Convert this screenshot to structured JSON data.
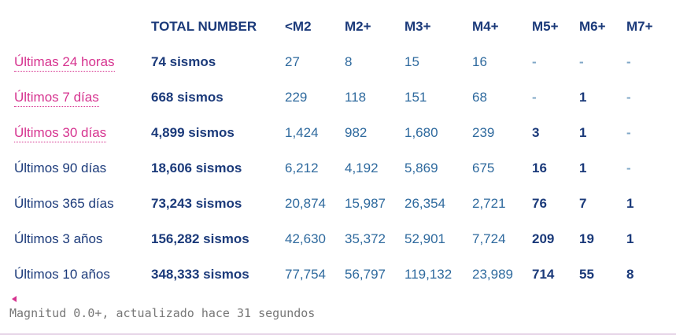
{
  "table": {
    "headers": {
      "period": "",
      "total": "TOTAL NUMBER",
      "m1": "<M2",
      "m2": "M2+",
      "m3": "M3+",
      "m4": "M4+",
      "m5": "M5+",
      "m6": "M6+",
      "m7": "M7+"
    },
    "rows": [
      {
        "period": "Últimas 24 horas",
        "link": true,
        "total": "74 sismos",
        "m1": "27",
        "m2": "8",
        "m3": "15",
        "m4": "16",
        "m5": "-",
        "m6": "-",
        "m7": "-"
      },
      {
        "period": "Últimos 7 días",
        "link": true,
        "total": "668 sismos",
        "m1": "229",
        "m2": "118",
        "m3": "151",
        "m4": "68",
        "m5": "-",
        "m6": "1",
        "m7": "-"
      },
      {
        "period": "Últimos 30 días",
        "link": true,
        "total": "4,899 sismos",
        "m1": "1,424",
        "m2": "982",
        "m3": "1,680",
        "m4": "239",
        "m5": "3",
        "m6": "1",
        "m7": "-"
      },
      {
        "period": "Últimos 90 días",
        "link": false,
        "total": "18,606 sismos",
        "m1": "6,212",
        "m2": "4,192",
        "m3": "5,869",
        "m4": "675",
        "m5": "16",
        "m6": "1",
        "m7": "-"
      },
      {
        "period": "Últimos 365 días",
        "link": false,
        "total": "73,243 sismos",
        "m1": "20,874",
        "m2": "15,987",
        "m3": "26,354",
        "m4": "2,721",
        "m5": "76",
        "m6": "7",
        "m7": "1"
      },
      {
        "period": "Últimos 3 años",
        "link": false,
        "total": "156,282 sismos",
        "m1": "42,630",
        "m2": "35,372",
        "m3": "52,901",
        "m4": "7,724",
        "m5": "209",
        "m6": "19",
        "m7": "1"
      },
      {
        "period": "Últimos 10 años",
        "link": false,
        "total": "348,333 sismos",
        "m1": "77,754",
        "m2": "56,797",
        "m3": "119,132",
        "m4": "23,989",
        "m5": "714",
        "m6": "55",
        "m7": "8"
      }
    ]
  },
  "footer": {
    "note": "Magnitud 0.0+, actualizado hace 31 segundos"
  },
  "colors": {
    "accent_pink": "#d6338f",
    "heading_navy": "#1b3a7a",
    "value_blue": "#2f6a9e"
  }
}
